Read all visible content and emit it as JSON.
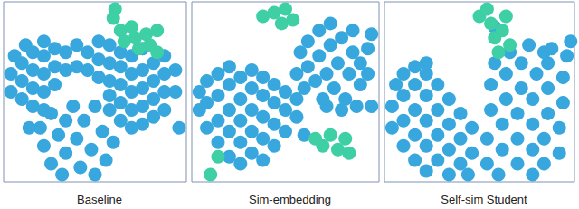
{
  "chart_data": [
    {
      "type": "scatter",
      "title": "Baseline",
      "xlim": [
        0,
        100
      ],
      "ylim": [
        0,
        100
      ],
      "tick_labels": false,
      "grid": false,
      "series": [
        {
          "color": "#38a7dd",
          "x": [
            4,
            4,
            6,
            10,
            10,
            10,
            12,
            16,
            16,
            16,
            16,
            22,
            22,
            22,
            22,
            22,
            28,
            28,
            28,
            34,
            34,
            40,
            40,
            46,
            46,
            52,
            52,
            52,
            58,
            58,
            58,
            64,
            64,
            64,
            64,
            64,
            70,
            70,
            70,
            70,
            70,
            76,
            76,
            76,
            76,
            76,
            82,
            82,
            82,
            82,
            88,
            88,
            88,
            88,
            94,
            94,
            20,
            22,
            26,
            26,
            30,
            32,
            34,
            34,
            38,
            40,
            42,
            44,
            48,
            50,
            50,
            54,
            56,
            58,
            60,
            58,
            96,
            14
          ],
          "values": [
            50,
            60,
            70,
            46,
            56,
            66,
            76,
            42,
            52,
            62,
            72,
            40,
            50,
            60,
            70,
            78,
            54,
            64,
            74,
            62,
            72,
            64,
            76,
            62,
            72,
            58,
            68,
            78,
            56,
            66,
            76,
            34,
            44,
            54,
            64,
            72,
            30,
            40,
            50,
            60,
            70,
            32,
            42,
            52,
            62,
            74,
            36,
            46,
            56,
            66,
            40,
            50,
            60,
            70,
            50,
            62,
            30,
            20,
            10,
            38,
            26,
            4,
            16,
            34,
            42,
            24,
            8,
            34,
            18,
            4,
            42,
            28,
            12,
            40,
            22,
            48,
            30,
            30
          ]
        },
        {
          "color": "#3ecfa5",
          "x": [
            61,
            60,
            64,
            66,
            70,
            72,
            74,
            78,
            80,
            84,
            84
          ],
          "values": [
            96,
            91,
            84,
            78,
            86,
            80,
            74,
            82,
            76,
            84,
            72
          ]
        }
      ]
    },
    {
      "type": "scatter",
      "title": "Sim-embedding",
      "xlim": [
        0,
        100
      ],
      "ylim": [
        0,
        100
      ],
      "tick_labels": false,
      "grid": false,
      "series": [
        {
          "color": "#38a7dd",
          "x": [
            4,
            4,
            8,
            8,
            8,
            14,
            14,
            14,
            14,
            20,
            20,
            20,
            20,
            20,
            26,
            26,
            26,
            26,
            26,
            32,
            32,
            32,
            32,
            32,
            38,
            38,
            38,
            38,
            38,
            44,
            44,
            44,
            44,
            50,
            50,
            50,
            56,
            56,
            56,
            58,
            60,
            62,
            62,
            66,
            68,
            68,
            70,
            72,
            74,
            74,
            76,
            78,
            80,
            82,
            84,
            86,
            86,
            90,
            90,
            94,
            94,
            96,
            72,
            80,
            88,
            96,
            60
          ],
          "values": [
            40,
            50,
            30,
            44,
            56,
            22,
            34,
            48,
            60,
            14,
            28,
            40,
            54,
            64,
            10,
            22,
            34,
            46,
            58,
            16,
            28,
            40,
            52,
            62,
            12,
            24,
            36,
            48,
            58,
            20,
            32,
            44,
            54,
            28,
            40,
            50,
            36,
            46,
            60,
            72,
            52,
            64,
            78,
            56,
            70,
            84,
            46,
            60,
            76,
            88,
            52,
            66,
            80,
            46,
            60,
            72,
            84,
            54,
            66,
            60,
            74,
            82,
            42,
            40,
            42,
            42,
            26
          ]
        },
        {
          "color": "#3ecfa5",
          "x": [
            38,
            44,
            50,
            54,
            48,
            66,
            70,
            74,
            78,
            82,
            84,
            14,
            10
          ],
          "values": [
            92,
            94,
            96,
            90,
            88,
            24,
            20,
            26,
            18,
            24,
            16,
            14,
            4
          ]
        }
      ]
    },
    {
      "type": "scatter",
      "title": "Self-sim Student",
      "xlim": [
        0,
        100
      ],
      "ylim": [
        0,
        100
      ],
      "tick_labels": false,
      "grid": false,
      "series": [
        {
          "color": "#38a7dd",
          "x": [
            4,
            4,
            6,
            10,
            10,
            10,
            10,
            16,
            16,
            16,
            16,
            16,
            22,
            22,
            22,
            22,
            22,
            28,
            28,
            28,
            28,
            34,
            34,
            34,
            34,
            40,
            40,
            40,
            44,
            46,
            46,
            22,
            54,
            54,
            56,
            56,
            58,
            60,
            62,
            62,
            64,
            64,
            66,
            70,
            70,
            70,
            72,
            72,
            76,
            78,
            78,
            78,
            78,
            80,
            84,
            84,
            86,
            86,
            86,
            88,
            92,
            92,
            94,
            94,
            96,
            58,
            84,
            98
          ],
          "values": [
            30,
            42,
            54,
            20,
            34,
            48,
            60,
            12,
            26,
            40,
            54,
            64,
            6,
            20,
            34,
            48,
            60,
            12,
            26,
            40,
            54,
            4,
            18,
            32,
            46,
            10,
            24,
            38,
            4,
            16,
            30,
            66,
            10,
            24,
            40,
            54,
            66,
            4,
            18,
            32,
            46,
            60,
            72,
            10,
            24,
            38,
            52,
            66,
            76,
            4,
            18,
            32,
            46,
            60,
            10,
            24,
            38,
            52,
            66,
            74,
            16,
            30,
            44,
            58,
            70,
            86,
            72,
            78
          ]
        },
        {
          "color": "#3ecfa5",
          "x": [
            50,
            54,
            56,
            58,
            62,
            60,
            66,
            64
          ],
          "values": [
            92,
            96,
            88,
            80,
            84,
            72,
            76,
            92
          ]
        }
      ]
    }
  ]
}
